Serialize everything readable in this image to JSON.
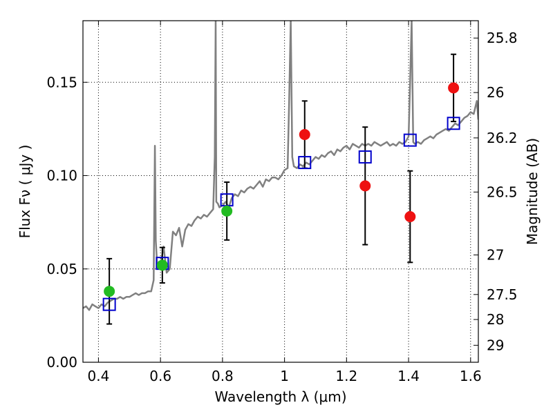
{
  "chart_data": {
    "type": "scatter",
    "xlabel": "Wavelength  λ (μm)",
    "ylabel": "Flux  Fν  ( μJy )",
    "y2label": "Magnitude (AB)",
    "xlim": [
      0.35,
      1.625
    ],
    "ylim": [
      0.0,
      0.183
    ],
    "grid": true,
    "xticks": [
      0.4,
      0.6,
      0.8,
      1.0,
      1.2,
      1.4,
      1.6
    ],
    "xtick_labels": [
      "0.4",
      "0.6",
      "0.8",
      "1",
      "1.2",
      "1.4",
      "1.6"
    ],
    "yticks": [
      0.0,
      0.05,
      0.1,
      0.15
    ],
    "ytick_labels": [
      "0.00",
      "0.05",
      "0.10",
      "0.15"
    ],
    "y2ticks": [
      {
        "label": "25.8",
        "flux": 0.1737
      },
      {
        "label": "26",
        "flux": 0.1445
      },
      {
        "label": "26.2",
        "flux": 0.1202
      },
      {
        "label": "26.5",
        "flux": 0.0912
      },
      {
        "label": "27",
        "flux": 0.0575
      },
      {
        "label": "27.5",
        "flux": 0.0363
      },
      {
        "label": "28",
        "flux": 0.0229
      },
      {
        "label": "29",
        "flux": 0.0091
      }
    ],
    "series": [
      {
        "kind": "spectrum",
        "color": "#808080",
        "x": [
          0.35,
          0.36,
          0.37,
          0.38,
          0.39,
          0.4,
          0.41,
          0.42,
          0.43,
          0.44,
          0.45,
          0.46,
          0.47,
          0.48,
          0.49,
          0.5,
          0.51,
          0.52,
          0.53,
          0.54,
          0.55,
          0.56,
          0.57,
          0.578,
          0.582,
          0.585,
          0.59,
          0.6,
          0.61,
          0.62,
          0.63,
          0.64,
          0.65,
          0.66,
          0.67,
          0.68,
          0.69,
          0.7,
          0.71,
          0.72,
          0.73,
          0.74,
          0.75,
          0.76,
          0.77,
          0.775,
          0.778,
          0.78,
          0.785,
          0.79,
          0.8,
          0.81,
          0.82,
          0.83,
          0.84,
          0.85,
          0.86,
          0.87,
          0.88,
          0.89,
          0.9,
          0.91,
          0.92,
          0.93,
          0.94,
          0.95,
          0.96,
          0.97,
          0.98,
          0.99,
          1.0,
          1.01,
          1.015,
          1.02,
          1.025,
          1.03,
          1.04,
          1.05,
          1.06,
          1.07,
          1.08,
          1.09,
          1.1,
          1.11,
          1.12,
          1.13,
          1.14,
          1.15,
          1.16,
          1.17,
          1.18,
          1.19,
          1.2,
          1.21,
          1.22,
          1.23,
          1.24,
          1.25,
          1.26,
          1.27,
          1.28,
          1.29,
          1.3,
          1.31,
          1.32,
          1.33,
          1.34,
          1.35,
          1.36,
          1.37,
          1.38,
          1.39,
          1.4,
          1.405,
          1.41,
          1.415,
          1.42,
          1.43,
          1.44,
          1.45,
          1.46,
          1.47,
          1.48,
          1.49,
          1.5,
          1.51,
          1.52,
          1.53,
          1.54,
          1.55,
          1.56,
          1.57,
          1.58,
          1.59,
          1.6,
          1.61,
          1.62,
          1.625
        ],
        "y": [
          0.029,
          0.03,
          0.028,
          0.031,
          0.03,
          0.029,
          0.031,
          0.03,
          0.032,
          0.033,
          0.034,
          0.034,
          0.035,
          0.034,
          0.035,
          0.035,
          0.036,
          0.037,
          0.036,
          0.037,
          0.037,
          0.038,
          0.038,
          0.044,
          0.116,
          0.065,
          0.05,
          0.052,
          0.062,
          0.048,
          0.05,
          0.07,
          0.068,
          0.072,
          0.062,
          0.071,
          0.074,
          0.073,
          0.076,
          0.078,
          0.077,
          0.079,
          0.078,
          0.08,
          0.082,
          0.11,
          0.183,
          0.086,
          0.085,
          0.083,
          0.084,
          0.086,
          0.083,
          0.088,
          0.09,
          0.089,
          0.092,
          0.091,
          0.093,
          0.094,
          0.093,
          0.095,
          0.097,
          0.094,
          0.098,
          0.097,
          0.099,
          0.099,
          0.098,
          0.1,
          0.103,
          0.104,
          0.14,
          0.183,
          0.11,
          0.105,
          0.104,
          0.106,
          0.105,
          0.107,
          0.106,
          0.108,
          0.11,
          0.109,
          0.111,
          0.11,
          0.112,
          0.113,
          0.111,
          0.114,
          0.113,
          0.115,
          0.116,
          0.114,
          0.117,
          0.116,
          0.115,
          0.117,
          0.116,
          0.117,
          0.116,
          0.118,
          0.117,
          0.116,
          0.117,
          0.118,
          0.116,
          0.117,
          0.116,
          0.118,
          0.117,
          0.118,
          0.121,
          0.15,
          0.183,
          0.118,
          0.117,
          0.118,
          0.117,
          0.119,
          0.12,
          0.121,
          0.12,
          0.122,
          0.123,
          0.124,
          0.125,
          0.124,
          0.126,
          0.128,
          0.127,
          0.129,
          0.131,
          0.132,
          0.134,
          0.133,
          0.14,
          0.13
        ]
      },
      {
        "kind": "model-photometry",
        "marker": "open-square",
        "color": "#0000cc",
        "x": [
          0.435,
          0.606,
          0.814,
          1.065,
          1.26,
          1.405,
          1.545
        ],
        "y": [
          0.031,
          0.053,
          0.087,
          0.107,
          0.11,
          0.119,
          0.128
        ]
      },
      {
        "kind": "observed-optical",
        "marker": "filled-circle",
        "color": "#22bb22",
        "x": [
          0.435,
          0.606,
          0.814
        ],
        "y": [
          0.038,
          0.052,
          0.081
        ],
        "yerr": [
          0.0175,
          0.0095,
          0.0155
        ]
      },
      {
        "kind": "observed-infrared",
        "marker": "filled-circle",
        "color": "#ee1111",
        "x": [
          1.065,
          1.26,
          1.405,
          1.545
        ],
        "y": [
          0.122,
          0.0945,
          0.078,
          0.147
        ],
        "yerr": [
          0.018,
          0.0315,
          0.0245,
          0.018
        ]
      }
    ]
  }
}
